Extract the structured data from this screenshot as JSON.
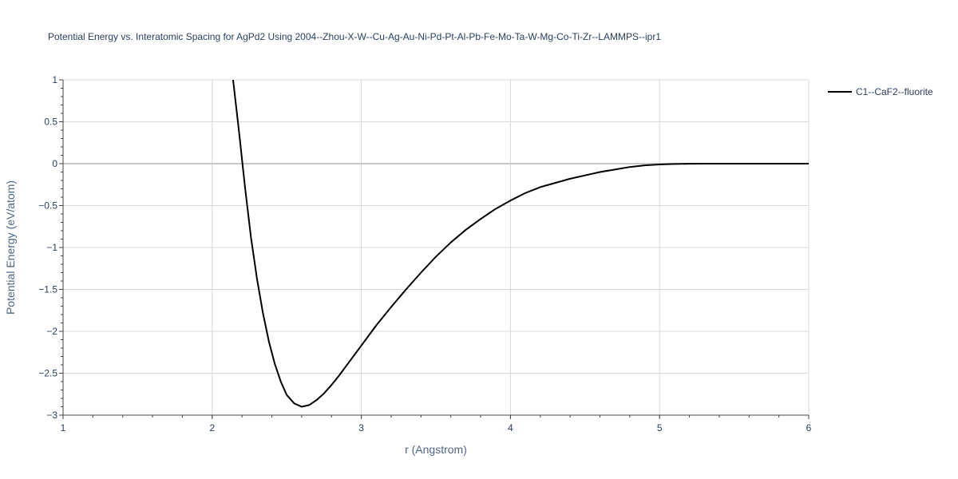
{
  "chart_data": {
    "type": "line",
    "title": "Potential Energy vs. Interatomic Spacing for AgPd2 Using 2004--Zhou-X-W--Cu-Ag-Au-Ni-Pd-Pt-Al-Pb-Fe-Mo-Ta-W-Mg-Co-Ti-Zr--LAMMPS--ipr1",
    "xlabel": "r (Angstrom)",
    "ylabel": "Potential Energy (eV/atom)",
    "xlim": [
      1,
      6
    ],
    "ylim": [
      -3,
      1
    ],
    "x_ticks": [
      1,
      2,
      3,
      4,
      5,
      6
    ],
    "x_tick_labels": [
      "1",
      "2",
      "3",
      "4",
      "5",
      "6"
    ],
    "y_ticks": [
      1,
      0.5,
      0,
      -0.5,
      -1,
      -1.5,
      -2,
      -2.5,
      -3
    ],
    "y_tick_labels": [
      "1",
      "0.5",
      "0",
      "−0.5",
      "−1",
      "−1.5",
      "−2",
      "−2.5",
      "−3"
    ],
    "grid": true,
    "legend_position": "top-right",
    "series": [
      {
        "name": "C1--CaF2--fluorite",
        "color": "#000000",
        "x": [
          2.14,
          2.18,
          2.22,
          2.26,
          2.3,
          2.34,
          2.38,
          2.42,
          2.46,
          2.5,
          2.55,
          2.6,
          2.65,
          2.7,
          2.75,
          2.8,
          2.85,
          2.9,
          2.95,
          3.0,
          3.1,
          3.2,
          3.3,
          3.4,
          3.5,
          3.6,
          3.7,
          3.8,
          3.9,
          4.0,
          4.1,
          4.2,
          4.3,
          4.4,
          4.5,
          4.6,
          4.7,
          4.8,
          4.9,
          5.0,
          5.1,
          5.2,
          5.3,
          5.4,
          5.5,
          5.6,
          5.8,
          6.0
        ],
        "y": [
          1.0,
          0.38,
          -0.28,
          -0.88,
          -1.37,
          -1.78,
          -2.12,
          -2.39,
          -2.6,
          -2.76,
          -2.86,
          -2.9,
          -2.88,
          -2.82,
          -2.74,
          -2.64,
          -2.53,
          -2.41,
          -2.29,
          -2.17,
          -1.93,
          -1.71,
          -1.5,
          -1.3,
          -1.11,
          -0.94,
          -0.79,
          -0.66,
          -0.54,
          -0.44,
          -0.35,
          -0.28,
          -0.23,
          -0.18,
          -0.14,
          -0.1,
          -0.07,
          -0.04,
          -0.02,
          -0.01,
          -0.004,
          -0.001,
          0.0,
          0.0,
          0.0,
          0.0,
          0.0,
          0.0
        ]
      }
    ]
  }
}
